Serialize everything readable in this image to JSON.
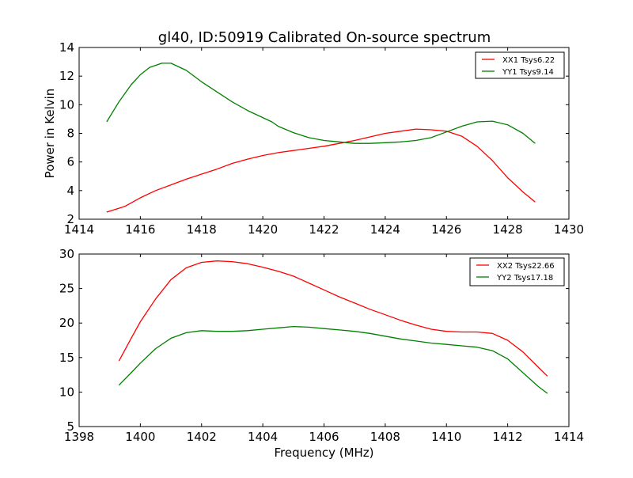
{
  "figure": {
    "title": "gl40, ID:50919 Calibrated On-source spectrum"
  },
  "chart_data": [
    {
      "type": "line",
      "title": "gl40, ID:50919 Calibrated On-source spectrum",
      "xlabel": "",
      "ylabel": "Power in Kelvin",
      "xlim": [
        1414,
        1430
      ],
      "ylim": [
        2,
        14
      ],
      "xticks": [
        1414,
        1416,
        1418,
        1420,
        1422,
        1424,
        1426,
        1428,
        1430
      ],
      "yticks": [
        2,
        4,
        6,
        8,
        10,
        12,
        14
      ],
      "legend_position": "top-right",
      "grid": false,
      "series": [
        {
          "name": "XX1 Tsys6.22",
          "color": "#ff0000",
          "x": [
            1414.9,
            1415.5,
            1416.0,
            1416.5,
            1417.0,
            1417.5,
            1418.0,
            1418.5,
            1419.0,
            1419.5,
            1420.0,
            1420.5,
            1421.0,
            1421.5,
            1422.0,
            1422.5,
            1423.0,
            1423.5,
            1424.0,
            1424.5,
            1425.0,
            1425.5,
            1426.0,
            1426.5,
            1427.0,
            1427.5,
            1428.0,
            1428.5,
            1428.9
          ],
          "y": [
            2.5,
            2.9,
            3.5,
            4.0,
            4.4,
            4.8,
            5.15,
            5.5,
            5.9,
            6.2,
            6.45,
            6.65,
            6.8,
            6.95,
            7.1,
            7.3,
            7.5,
            7.75,
            8.0,
            8.15,
            8.3,
            8.25,
            8.15,
            7.8,
            7.1,
            6.1,
            4.9,
            3.9,
            3.2
          ]
        },
        {
          "name": "YY1 Tsys9.14",
          "color": "#008000",
          "x": [
            1414.9,
            1415.3,
            1415.7,
            1416.0,
            1416.3,
            1416.7,
            1417.0,
            1417.5,
            1418.0,
            1418.5,
            1419.0,
            1419.5,
            1420.0,
            1420.3,
            1420.5,
            1421.0,
            1421.5,
            1422.0,
            1422.5,
            1423.0,
            1423.5,
            1424.0,
            1424.5,
            1425.0,
            1425.5,
            1426.0,
            1426.5,
            1427.0,
            1427.5,
            1428.0,
            1428.5,
            1428.9
          ],
          "y": [
            8.8,
            10.2,
            11.4,
            12.1,
            12.6,
            12.9,
            12.9,
            12.4,
            11.6,
            10.9,
            10.2,
            9.6,
            9.1,
            8.8,
            8.5,
            8.05,
            7.7,
            7.5,
            7.4,
            7.3,
            7.3,
            7.35,
            7.4,
            7.5,
            7.7,
            8.1,
            8.5,
            8.8,
            8.85,
            8.6,
            8.0,
            7.3
          ]
        }
      ]
    },
    {
      "type": "line",
      "title": "",
      "xlabel": "Frequency (MHz)",
      "ylabel": "",
      "xlim": [
        1398,
        1414
      ],
      "ylim": [
        5,
        30
      ],
      "xticks": [
        1398,
        1400,
        1402,
        1404,
        1406,
        1408,
        1410,
        1412,
        1414
      ],
      "yticks": [
        5,
        10,
        15,
        20,
        25,
        30
      ],
      "legend_position": "top-right",
      "grid": false,
      "series": [
        {
          "name": "XX2 Tsys22.66",
          "color": "#ff0000",
          "x": [
            1399.3,
            1399.7,
            1400.0,
            1400.5,
            1401.0,
            1401.5,
            1402.0,
            1402.5,
            1403.0,
            1403.5,
            1404.0,
            1404.5,
            1405.0,
            1405.5,
            1406.0,
            1406.5,
            1407.0,
            1407.5,
            1408.0,
            1408.5,
            1409.0,
            1409.5,
            1410.0,
            1410.5,
            1411.0,
            1411.5,
            1412.0,
            1412.5,
            1413.0,
            1413.3
          ],
          "y": [
            14.5,
            17.8,
            20.2,
            23.5,
            26.3,
            28.0,
            28.8,
            29.0,
            28.9,
            28.6,
            28.1,
            27.5,
            26.8,
            25.8,
            24.8,
            23.8,
            22.9,
            22.0,
            21.2,
            20.4,
            19.7,
            19.1,
            18.8,
            18.7,
            18.7,
            18.5,
            17.5,
            15.8,
            13.6,
            12.3
          ]
        },
        {
          "name": "YY2 Tsys17.18",
          "color": "#008000",
          "x": [
            1399.3,
            1399.7,
            1400.0,
            1400.5,
            1401.0,
            1401.5,
            1402.0,
            1402.5,
            1403.0,
            1403.5,
            1404.0,
            1404.5,
            1405.0,
            1405.5,
            1406.0,
            1406.5,
            1407.0,
            1407.5,
            1408.0,
            1408.5,
            1409.0,
            1409.5,
            1410.0,
            1410.5,
            1411.0,
            1411.5,
            1412.0,
            1412.5,
            1413.0,
            1413.3
          ],
          "y": [
            11.0,
            12.8,
            14.2,
            16.3,
            17.8,
            18.6,
            18.9,
            18.8,
            18.8,
            18.9,
            19.1,
            19.3,
            19.5,
            19.4,
            19.2,
            19.0,
            18.8,
            18.5,
            18.1,
            17.7,
            17.4,
            17.1,
            16.9,
            16.7,
            16.5,
            16.0,
            14.8,
            12.8,
            10.8,
            9.8
          ]
        }
      ]
    }
  ]
}
